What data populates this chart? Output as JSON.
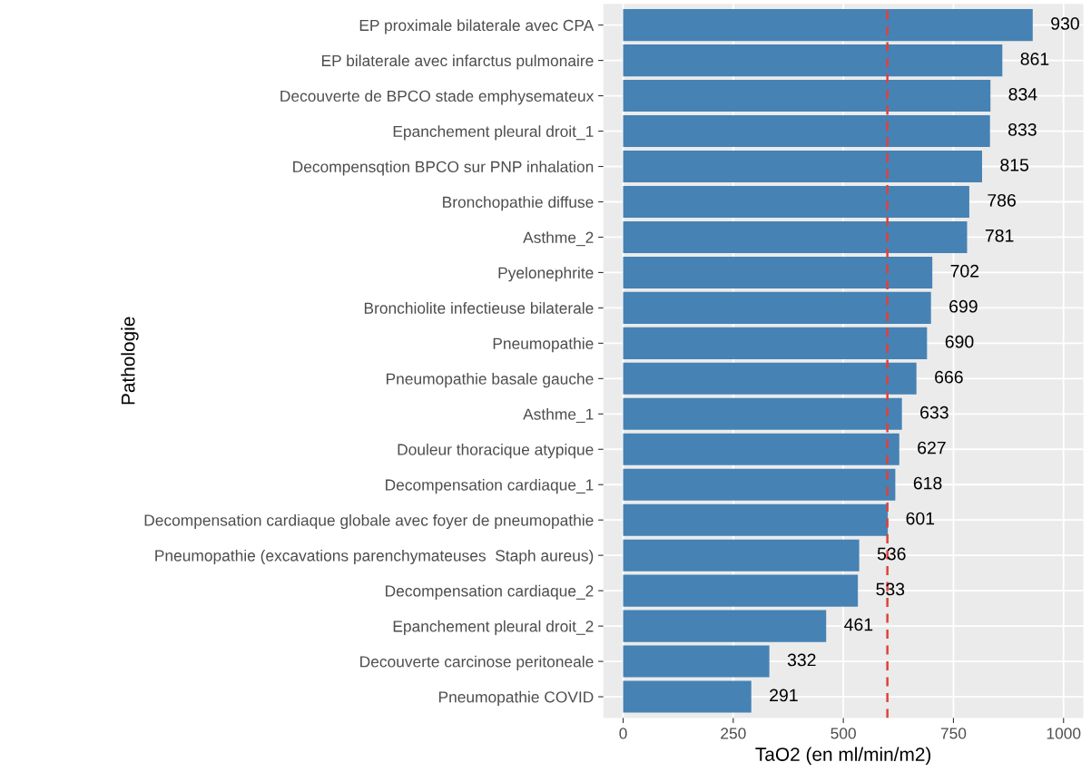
{
  "chart_data": {
    "type": "bar",
    "orientation": "horizontal",
    "xlabel": "TaO2 (en ml/min/m2)",
    "ylabel": "Pathologie",
    "categories": [
      "EP proximale bilaterale avec CPA",
      "EP bilaterale avec infarctus pulmonaire",
      "Decouverte de BPCO stade emphysemateux",
      "Epanchement pleural droit_1",
      "Decompensqtion BPCO sur PNP inhalation",
      "Bronchopathie diffuse",
      "Asthme_2",
      "Pyelonephrite",
      "Bronchiolite infectieuse bilaterale",
      "Pneumopathie",
      "Pneumopathie basale gauche",
      "Asthme_1",
      "Douleur thoracique atypique",
      "Decompensation cardiaque_1",
      "Decompensation cardiaque globale avec foyer de pneumopathie",
      "Pneumopathie (excavations parenchymateuses  Staph aureus)",
      "Decompensation cardiaque_2",
      "Epanchement pleural droit_2",
      "Decouverte carcinose peritoneale",
      "Pneumopathie COVID"
    ],
    "values": [
      930,
      861,
      834,
      833,
      815,
      786,
      781,
      702,
      699,
      690,
      666,
      633,
      627,
      618,
      601,
      536,
      533,
      461,
      332,
      291
    ],
    "color": "#4682b4",
    "data_labels": true,
    "xlim": [
      -45,
      1045
    ],
    "xticks": [
      0,
      250,
      500,
      750,
      1000
    ],
    "grid": true,
    "ref_lines": [
      {
        "axis": "x",
        "value": 600,
        "color": "#e0413a",
        "line_style": "dashed"
      }
    ]
  }
}
